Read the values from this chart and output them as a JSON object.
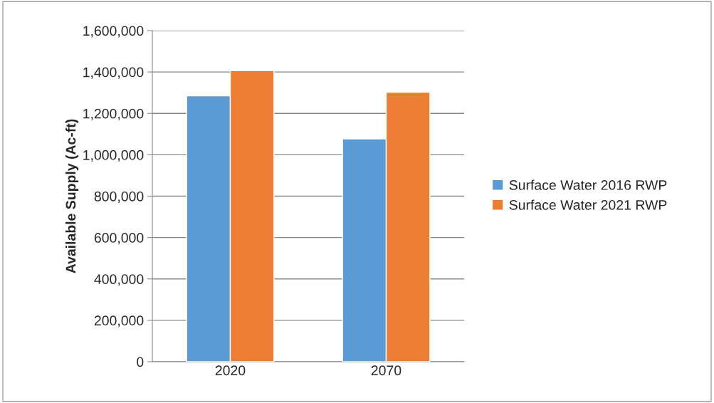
{
  "chart_data": {
    "type": "bar",
    "categories": [
      "2020",
      "2070"
    ],
    "ylabel": "Available Supply (Ac-ft)",
    "series": [
      {
        "name": "Surface Water 2016 RWP",
        "color": "#5b9bd5",
        "values": [
          1285000,
          1077000
        ]
      },
      {
        "name": "Surface Water 2021 RWP",
        "color": "#ed7d31",
        "values": [
          1406000,
          1302000
        ]
      }
    ],
    "ylim": [
      0,
      1600000
    ],
    "yticks": [
      {
        "value": 0,
        "label": "0"
      },
      {
        "value": 200000,
        "label": "200,000"
      },
      {
        "value": 400000,
        "label": "400,000"
      },
      {
        "value": 600000,
        "label": "600,000"
      },
      {
        "value": 800000,
        "label": "800,000"
      },
      {
        "value": 1000000,
        "label": "1,000,000"
      },
      {
        "value": 1200000,
        "label": "1,200,000"
      },
      {
        "value": 1400000,
        "label": "1,400,000"
      },
      {
        "value": 1600000,
        "label": "1,600,000"
      }
    ],
    "grid": "y",
    "legend": "right"
  }
}
